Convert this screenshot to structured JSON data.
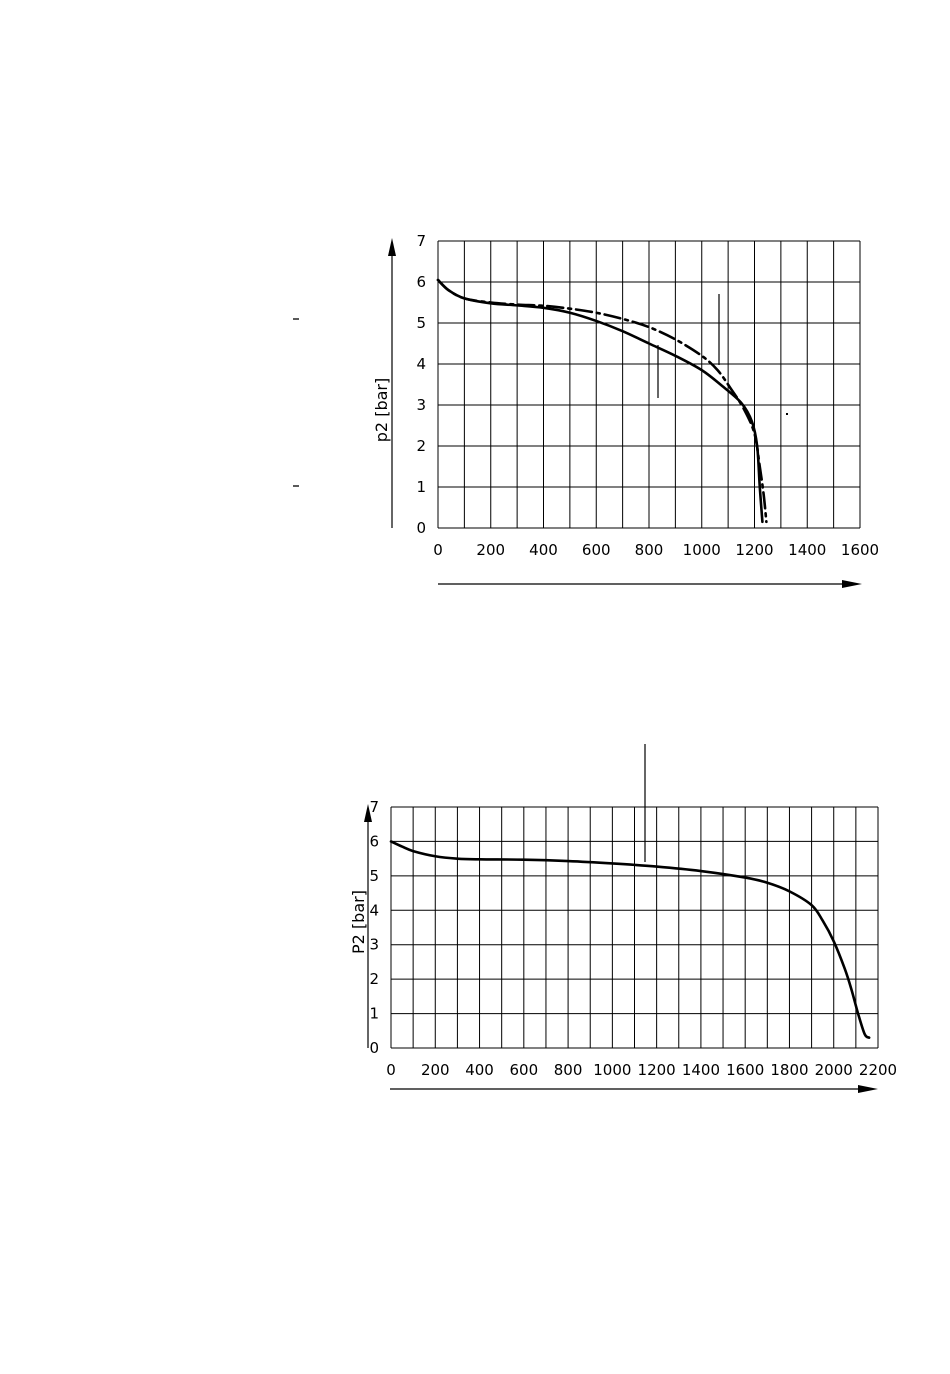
{
  "chart_data": [
    {
      "type": "line",
      "ylabel": "p2 [bar]",
      "xlim": [
        0,
        1600
      ],
      "ylim": [
        0,
        7
      ],
      "x_ticks": [
        0,
        200,
        400,
        600,
        800,
        1000,
        1200,
        1400,
        1600
      ],
      "y_ticks": [
        0,
        1,
        2,
        3,
        4,
        5,
        6,
        7
      ],
      "grid": true,
      "series": [
        {
          "style": "solid",
          "x": [
            0,
            40,
            100,
            200,
            300,
            400,
            500,
            600,
            700,
            800,
            900,
            1000,
            1080,
            1150,
            1190,
            1210,
            1220,
            1230
          ],
          "y": [
            6.05,
            5.8,
            5.6,
            5.48,
            5.43,
            5.37,
            5.25,
            5.05,
            4.8,
            4.5,
            4.2,
            3.85,
            3.45,
            3.05,
            2.6,
            2.0,
            1.0,
            0.15
          ]
        },
        {
          "style": "dash-dot",
          "x": [
            0,
            40,
            100,
            200,
            300,
            400,
            500,
            600,
            700,
            800,
            900,
            1000,
            1060,
            1110,
            1160,
            1200,
            1220,
            1235,
            1245
          ],
          "y": [
            6.05,
            5.8,
            5.6,
            5.5,
            5.45,
            5.42,
            5.35,
            5.25,
            5.1,
            4.9,
            4.6,
            4.2,
            3.85,
            3.4,
            2.9,
            2.3,
            1.5,
            0.8,
            0.15
          ]
        }
      ]
    },
    {
      "type": "line",
      "ylabel": "P2 [bar]",
      "xlim": [
        0,
        2200
      ],
      "ylim": [
        0,
        7
      ],
      "x_ticks": [
        0,
        200,
        400,
        600,
        800,
        1000,
        1200,
        1400,
        1600,
        1800,
        2000,
        2200
      ],
      "y_ticks": [
        0,
        1,
        2,
        3,
        4,
        5,
        6,
        7
      ],
      "grid": true,
      "series": [
        {
          "style": "solid",
          "x": [
            0,
            50,
            100,
            200,
            300,
            400,
            600,
            800,
            1000,
            1200,
            1400,
            1600,
            1700,
            1800,
            1900,
            1950,
            2000,
            2050,
            2080,
            2110,
            2140,
            2160
          ],
          "y": [
            6.0,
            5.85,
            5.72,
            5.57,
            5.5,
            5.48,
            5.47,
            5.43,
            5.36,
            5.27,
            5.14,
            4.95,
            4.8,
            4.55,
            4.15,
            3.7,
            3.1,
            2.3,
            1.7,
            1.0,
            0.4,
            0.3
          ]
        }
      ]
    }
  ]
}
